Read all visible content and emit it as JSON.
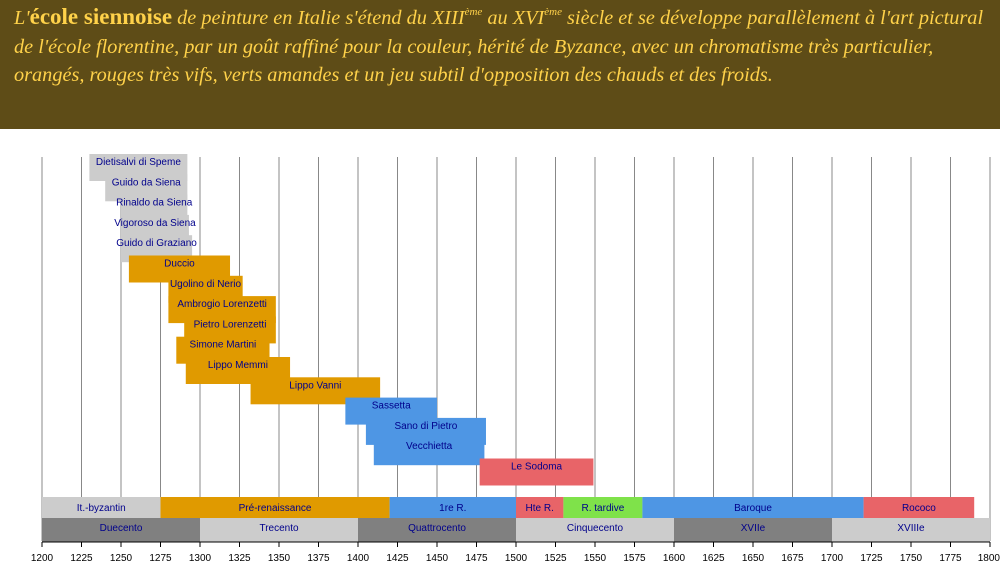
{
  "banner": {
    "prefix": "L'",
    "lead": "école siennoise",
    "t1": " de peinture en Italie s'étend du XIII",
    "sup1": "ème",
    "t2": " au XVI",
    "sup2": "ème",
    "t3": " siècle et se développe parallèlement à l'art pictural de l'école florentine, par un goût raffiné pour la couleur, hérité de Byzance, avec un chromatisme très particulier, orangés, rouges très vifs, verts amandes et un jeu subtil d'opposition des chauds et des froids."
  },
  "chart_data": {
    "type": "timeline",
    "xlim": [
      1200,
      1800
    ],
    "xticks": [
      1200,
      1225,
      1250,
      1275,
      1300,
      1325,
      1350,
      1375,
      1400,
      1425,
      1450,
      1475,
      1500,
      1525,
      1550,
      1575,
      1600,
      1625,
      1650,
      1675,
      1700,
      1725,
      1750,
      1775,
      1800
    ],
    "grid": "vertical",
    "colors": {
      "byzantin": "#cccccc",
      "renaissance": "#e09a00",
      "quattro": "#4e96e4",
      "sodoma": "#e86468",
      "tardive": "#7fe24a",
      "century_dark": "#808080",
      "century_light": "#cccccc",
      "label": "#00008b"
    },
    "painters": [
      {
        "name": "Dietisalvi di Speme",
        "start": 1230,
        "end": 1292,
        "color": "#cccccc"
      },
      {
        "name": "Guido da Siena",
        "start": 1240,
        "end": 1292,
        "color": "#cccccc"
      },
      {
        "name": "Rinaldo da Siena",
        "start": 1250,
        "end": 1292,
        "color": "#cccccc"
      },
      {
        "name": "Vigoroso da Siena",
        "start": 1250,
        "end": 1293,
        "color": "#cccccc"
      },
      {
        "name": "Guido di Graziano",
        "start": 1250,
        "end": 1295,
        "color": "#cccccc"
      },
      {
        "name": "Duccio",
        "start": 1255,
        "end": 1319,
        "color": "#e09a00"
      },
      {
        "name": "Ugolino di Nerio",
        "start": 1280,
        "end": 1327,
        "color": "#e09a00"
      },
      {
        "name": "Ambrogio Lorenzetti",
        "start": 1280,
        "end": 1348,
        "color": "#e09a00"
      },
      {
        "name": "Pietro Lorenzetti",
        "start": 1290,
        "end": 1348,
        "color": "#e09a00"
      },
      {
        "name": "Simone Martini",
        "start": 1285,
        "end": 1344,
        "color": "#e09a00"
      },
      {
        "name": "Lippo Memmi",
        "start": 1291,
        "end": 1357,
        "color": "#e09a00"
      },
      {
        "name": "Lippo Vanni",
        "start": 1332,
        "end": 1414,
        "color": "#e09a00"
      },
      {
        "name": "Sassetta",
        "start": 1392,
        "end": 1450,
        "color": "#4e96e4"
      },
      {
        "name": "Sano di Pietro",
        "start": 1405,
        "end": 1481,
        "color": "#4e96e4"
      },
      {
        "name": "Vecchietta",
        "start": 1410,
        "end": 1480,
        "color": "#4e96e4"
      },
      {
        "name": "Le Sodoma",
        "start": 1477,
        "end": 1549,
        "color": "#e86468"
      }
    ],
    "periods": [
      {
        "name": "It.-byzantin",
        "start": 1200,
        "end": 1275,
        "color": "#cccccc"
      },
      {
        "name": "Pré-renaissance",
        "start": 1275,
        "end": 1420,
        "color": "#e09a00"
      },
      {
        "name": "1re R.",
        "start": 1420,
        "end": 1500,
        "color": "#4e96e4"
      },
      {
        "name": "Hte R.",
        "start": 1500,
        "end": 1530,
        "color": "#e86468"
      },
      {
        "name": "R. tardive",
        "start": 1530,
        "end": 1580,
        "color": "#7fe24a"
      },
      {
        "name": "Baroque",
        "start": 1580,
        "end": 1720,
        "color": "#4e96e4"
      },
      {
        "name": "Rococo",
        "start": 1720,
        "end": 1790,
        "color": "#e86468"
      }
    ],
    "centuries": [
      {
        "name": "Duecento",
        "start": 1200,
        "end": 1300,
        "color": "#808080"
      },
      {
        "name": "Trecento",
        "start": 1300,
        "end": 1400,
        "color": "#cccccc"
      },
      {
        "name": "Quattrocento",
        "start": 1400,
        "end": 1500,
        "color": "#808080"
      },
      {
        "name": "Cinquecento",
        "start": 1500,
        "end": 1600,
        "color": "#cccccc"
      },
      {
        "name": "XVIIe",
        "start": 1600,
        "end": 1700,
        "color": "#808080"
      },
      {
        "name": "XVIIIe",
        "start": 1700,
        "end": 1800,
        "color": "#cccccc"
      }
    ]
  }
}
